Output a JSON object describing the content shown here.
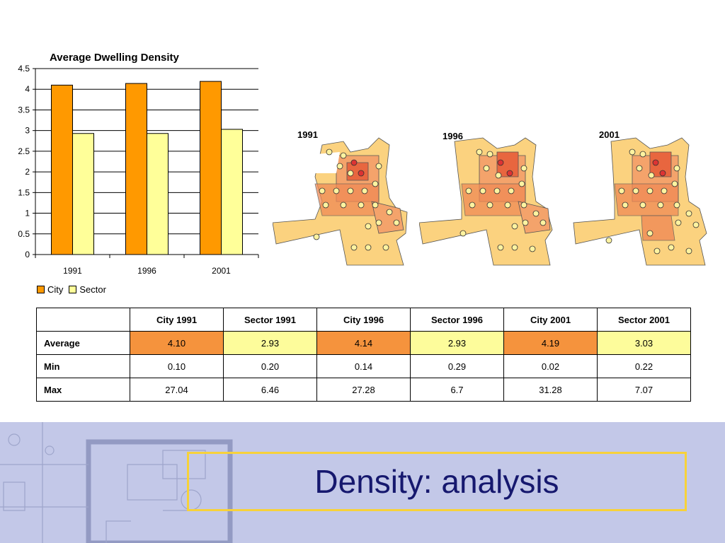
{
  "chart_data": {
    "type": "bar",
    "title": "Average Dwelling Density",
    "categories": [
      "1991",
      "1996",
      "2001"
    ],
    "series": [
      {
        "name": "City",
        "values": [
          4.1,
          4.14,
          4.19
        ],
        "color": "#ff9900"
      },
      {
        "name": "Sector",
        "values": [
          2.93,
          2.93,
          3.03
        ],
        "color": "#ffff99"
      }
    ],
    "ylim": [
      0,
      4.5
    ],
    "yticks": [
      "0",
      "0.5",
      "1",
      "1.5",
      "2",
      "2.5",
      "3",
      "3.5",
      "4",
      "4.5"
    ],
    "grid": true,
    "legend": "bottom-left"
  },
  "maps": [
    {
      "year": "1991"
    },
    {
      "year": "1996"
    },
    {
      "year": "2001"
    }
  ],
  "table": {
    "headers": [
      "",
      "City 1991",
      "Sector 1991",
      "City 1996",
      "Sector 1996",
      "City 2001",
      "Sector 2001"
    ],
    "rows": [
      {
        "label": "Average",
        "cells": [
          "4.10",
          "2.93",
          "4.14",
          "2.93",
          "4.19",
          "3.03"
        ]
      },
      {
        "label": "Min",
        "cells": [
          "0.10",
          "0.20",
          "0.14",
          "0.29",
          "0.02",
          "0.22"
        ]
      },
      {
        "label": "Max",
        "cells": [
          "27.04",
          "6.46",
          "27.28",
          "6.7",
          "31.28",
          "7.07"
        ]
      }
    ]
  },
  "colors": {
    "city": "#ff9900",
    "sector": "#ffff99",
    "table_city": "#f5933d",
    "table_sector": "#fdfc9b",
    "footer_bg": "#c3c8e8",
    "title_box_border": "#f7d23a",
    "title_text": "#16186e"
  },
  "footer": {
    "title": "Density: analysis"
  }
}
